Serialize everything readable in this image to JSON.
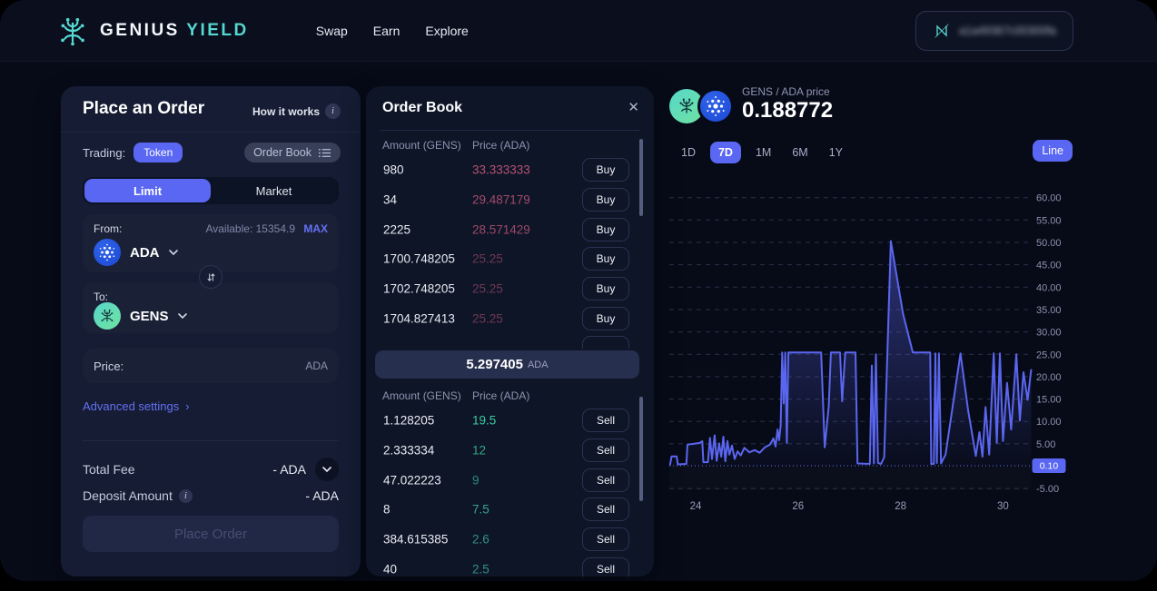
{
  "navbar": {
    "brand": {
      "primary": "GENIUS",
      "secondary": "YIELD"
    },
    "links": [
      {
        "label": "Swap"
      },
      {
        "label": "Earn"
      },
      {
        "label": "Explore"
      }
    ],
    "wallet_address": "a1a49367c00300fa"
  },
  "place_order": {
    "title": "Place an Order",
    "how_it_works": "How it works",
    "trading_label": "Trading:",
    "token_badge": "Token",
    "order_book_toggle": "Order Book",
    "tabs": {
      "limit": "Limit",
      "market": "Market"
    },
    "from": {
      "label": "From:",
      "available": "Available: 15354.9",
      "max": "MAX",
      "token": "ADA"
    },
    "to": {
      "label": "To:",
      "token": "GENS"
    },
    "price": {
      "label": "Price:",
      "unit": "ADA"
    },
    "advanced_settings": "Advanced settings",
    "advanced_chevron": "›",
    "total_fee": {
      "label": "Total Fee",
      "value": "- ADA"
    },
    "deposit": {
      "label": "Deposit Amount",
      "value": "- ADA"
    },
    "submit": "Place Order"
  },
  "order_book": {
    "title": "Order Book",
    "close_glyph": "✕",
    "columns": {
      "amount": "Amount (GENS)",
      "price": "Price (ADA)"
    },
    "buy_label": "Buy",
    "sell_label": "Sell",
    "current_price": {
      "value": "5.297405",
      "unit": "ADA"
    },
    "buy_rows": [
      {
        "amount": "980",
        "price": "33.333333"
      },
      {
        "amount": "34",
        "price": "29.487179"
      },
      {
        "amount": "2225",
        "price": "28.571429"
      },
      {
        "amount": "1700.748205",
        "price": "25.25"
      },
      {
        "amount": "1702.748205",
        "price": "25.25"
      },
      {
        "amount": "1704.827413",
        "price": "25.25"
      }
    ],
    "sell_rows": [
      {
        "amount": "1.128205",
        "price": "19.5"
      },
      {
        "amount": "2.333334",
        "price": "12"
      },
      {
        "amount": "47.022223",
        "price": "9"
      },
      {
        "amount": "8",
        "price": "7.5"
      },
      {
        "amount": "384.615385",
        "price": "2.6"
      },
      {
        "amount": "40",
        "price": "2.5"
      }
    ]
  },
  "chart": {
    "pair_label": "GENS / ADA price",
    "price": "0.188772",
    "ranges": [
      "1D",
      "7D",
      "1M",
      "6M",
      "1Y"
    ],
    "active_range": "7D",
    "chart_type_button": "Line",
    "current_price_badge": "0.10"
  },
  "chart_data": {
    "type": "line",
    "title": "GENS / ADA price",
    "x_ticks": [
      24,
      26,
      28,
      30
    ],
    "y_ticks": [
      60,
      55,
      50,
      45,
      40,
      35,
      30,
      25,
      20,
      15,
      10,
      5,
      -5
    ],
    "y_tick_labels": [
      "60.00",
      "55.00",
      "50.00",
      "45.00",
      "40.00",
      "35.00",
      "30.00",
      "25.00",
      "20.00",
      "15.00",
      "10.00",
      "5.00",
      "-5.00"
    ],
    "current_price": 0.1,
    "x_range": [
      23.45,
      30.55
    ],
    "y_range": [
      -7,
      62
    ],
    "grid": "dashed",
    "legend": "none",
    "line_color": "#5b66f0",
    "series": [
      {
        "name": "GENS/ADA",
        "points": [
          [
            23.5,
            0.3
          ],
          [
            23.53,
            2.2
          ],
          [
            23.63,
            2.2
          ],
          [
            23.65,
            0.4
          ],
          [
            23.82,
            0.5
          ],
          [
            23.84,
            4.8
          ],
          [
            24.08,
            5.2
          ],
          [
            24.13,
            5.6
          ],
          [
            24.15,
            0.9
          ],
          [
            24.24,
            0.9
          ],
          [
            24.28,
            6.3
          ],
          [
            24.32,
            1.6
          ],
          [
            24.37,
            6.9
          ],
          [
            24.41,
            1.2
          ],
          [
            24.46,
            5.1
          ],
          [
            24.5,
            2.1
          ],
          [
            24.54,
            6.6
          ],
          [
            24.58,
            1.1
          ],
          [
            24.62,
            5.6
          ],
          [
            24.66,
            2.6
          ],
          [
            24.71,
            4.6
          ],
          [
            24.76,
            1.6
          ],
          [
            24.82,
            3.3
          ],
          [
            24.88,
            2.4
          ],
          [
            24.95,
            4.1
          ],
          [
            25.05,
            3.1
          ],
          [
            25.15,
            3.6
          ],
          [
            25.25,
            3.0
          ],
          [
            25.35,
            4.2
          ],
          [
            25.45,
            4.8
          ],
          [
            25.52,
            6.2
          ],
          [
            25.56,
            4.4
          ],
          [
            25.6,
            8.2
          ],
          [
            25.63,
            5.8
          ],
          [
            25.66,
            9.0
          ],
          [
            25.69,
            25.4
          ],
          [
            25.72,
            14.0
          ],
          [
            25.75,
            25.4
          ],
          [
            25.78,
            5.2
          ],
          [
            25.81,
            25.4
          ],
          [
            25.95,
            25.4
          ],
          [
            26.45,
            25.4
          ],
          [
            26.52,
            4.2
          ],
          [
            26.6,
            13.5
          ],
          [
            26.64,
            25.4
          ],
          [
            26.82,
            25.4
          ],
          [
            26.86,
            14.5
          ],
          [
            26.92,
            25.4
          ],
          [
            27.12,
            25.4
          ],
          [
            27.16,
            0.6
          ],
          [
            27.4,
            0.5
          ],
          [
            27.44,
            22.5
          ],
          [
            27.48,
            0.6
          ],
          [
            27.52,
            25.0
          ],
          [
            27.56,
            0.7
          ],
          [
            27.62,
            0.5
          ],
          [
            27.68,
            2.0
          ],
          [
            27.81,
            50.3
          ],
          [
            28.05,
            34.0
          ],
          [
            28.24,
            25.4
          ],
          [
            28.58,
            25.4
          ],
          [
            28.6,
            0.5
          ],
          [
            28.65,
            0.5
          ],
          [
            28.68,
            25.2
          ],
          [
            28.71,
            0.7
          ],
          [
            28.75,
            25.2
          ],
          [
            28.79,
            0.6
          ],
          [
            28.88,
            2.6
          ],
          [
            29.17,
            25.2
          ],
          [
            29.32,
            12.5
          ],
          [
            29.47,
            2.3
          ],
          [
            29.54,
            7.6
          ],
          [
            29.6,
            2.1
          ],
          [
            29.66,
            13.2
          ],
          [
            29.73,
            2.6
          ],
          [
            29.82,
            25.2
          ],
          [
            29.88,
            5.2
          ],
          [
            29.94,
            25.2
          ],
          [
            30.0,
            5.6
          ],
          [
            30.08,
            18.6
          ],
          [
            30.16,
            8.2
          ],
          [
            30.26,
            25.0
          ],
          [
            30.33,
            10.2
          ],
          [
            30.4,
            21.0
          ],
          [
            30.48,
            14.8
          ],
          [
            30.55,
            21.5
          ]
        ]
      }
    ]
  },
  "colors": {
    "accent": "#5a67f2",
    "buy_red": "#c05577",
    "sell_green": "#3dc9a1",
    "teal": "#56d8d0",
    "panel_bg": "#151c33",
    "order_book_bg": "#0e1527"
  }
}
